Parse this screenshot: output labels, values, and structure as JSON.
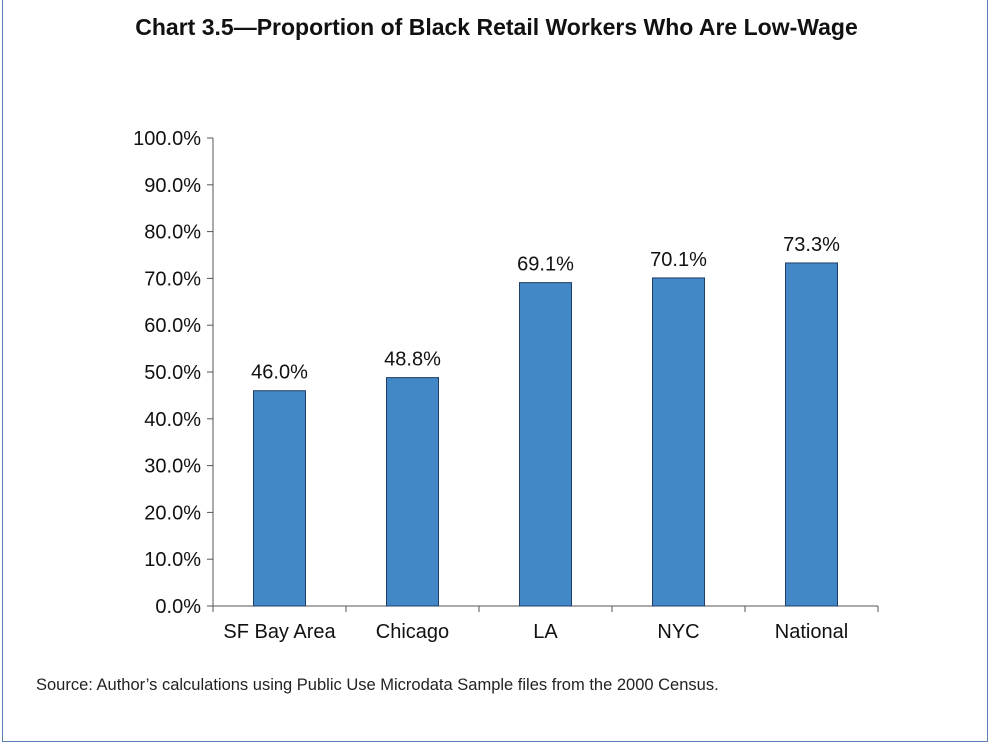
{
  "chart_data": {
    "type": "bar",
    "title": "Chart 3.5—Proportion of Black Retail Workers Who Are Low-Wage",
    "categories": [
      "SF Bay Area",
      "Chicago",
      "LA",
      "NYC",
      "National"
    ],
    "values": [
      46.0,
      48.8,
      69.1,
      70.1,
      73.3
    ],
    "data_labels": [
      "46.0%",
      "48.8%",
      "69.1%",
      "70.1%",
      "73.3%"
    ],
    "ylim": [
      0,
      100
    ],
    "yticks": [
      "0.0%",
      "10.0%",
      "20.0%",
      "30.0%",
      "40.0%",
      "50.0%",
      "60.0%",
      "70.0%",
      "80.0%",
      "90.0%",
      "100.0%"
    ],
    "xlabel": "",
    "ylabel": "",
    "grid": false,
    "bar_color": "#4287c6"
  },
  "source": "Source: Author’s calculations using Public Use Microdata Sample files from the 2000 Census."
}
